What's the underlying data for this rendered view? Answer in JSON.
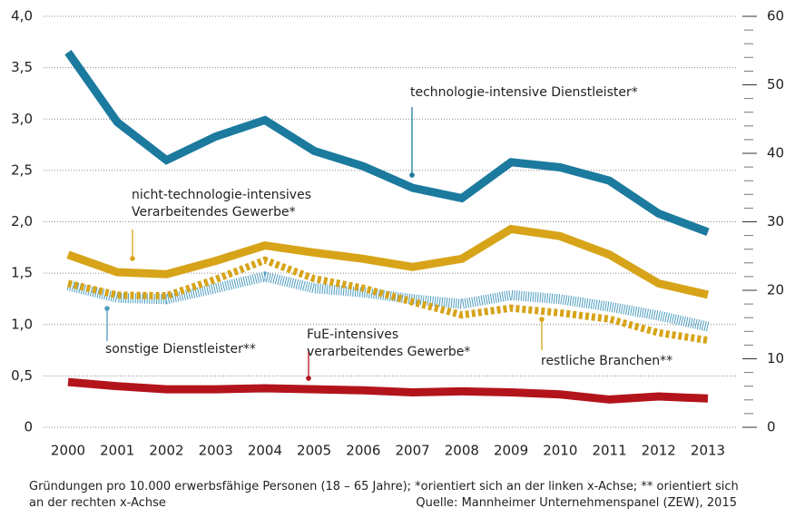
{
  "chart_data": {
    "type": "line",
    "x": [
      2000,
      2001,
      2002,
      2003,
      2004,
      2005,
      2006,
      2007,
      2008,
      2009,
      2010,
      2011,
      2012,
      2013
    ],
    "xlim": [
      2000,
      2013
    ],
    "xticks": [
      2000,
      2001,
      2002,
      2003,
      2004,
      2005,
      2006,
      2007,
      2008,
      2009,
      2010,
      2011,
      2012,
      2013
    ],
    "ylim": [
      0,
      4
    ],
    "yticks": [
      0,
      {
        "value": 0.5,
        "label": "0,5"
      },
      {
        "value": 1,
        "label": "1,0"
      },
      {
        "value": 1.5,
        "label": "1,5"
      },
      {
        "value": 2,
        "label": "2,0"
      },
      {
        "value": 2.5,
        "label": "2,5"
      },
      {
        "value": 3,
        "label": "3,0"
      },
      {
        "value": 3.5,
        "label": "3,5"
      },
      {
        "value": 4,
        "label": "4,0"
      }
    ],
    "y2lim": [
      0,
      60
    ],
    "y2ticks": [
      0,
      10,
      20,
      30,
      40,
      50,
      60
    ],
    "grid": true,
    "series": [
      {
        "name": "technologie-intensive Dienstleister*",
        "color": "#1b7a9e",
        "style": "solid",
        "values": [
          3.65,
          2.97,
          2.6,
          2.83,
          2.99,
          2.69,
          2.54,
          2.33,
          2.23,
          2.58,
          2.53,
          2.4,
          2.08,
          1.9
        ]
      },
      {
        "name": "nicht-technologie-intensives Verarbeitendes Gewerbe*",
        "color": "#d7a419",
        "style": "solid",
        "values": [
          1.68,
          1.51,
          1.49,
          1.62,
          1.77,
          1.7,
          1.64,
          1.56,
          1.64,
          1.93,
          1.86,
          1.68,
          1.4,
          1.29
        ]
      },
      {
        "name": "FuE-intensives verarbeitendes Gewerbe*",
        "color": "#b3141c",
        "style": "solid",
        "values": [
          0.44,
          0.4,
          0.37,
          0.37,
          0.38,
          0.37,
          0.36,
          0.34,
          0.35,
          0.34,
          0.32,
          0.27,
          0.3,
          0.28
        ]
      },
      {
        "name": "sonstige Dienstleister**",
        "color": "#4b9cbf",
        "style": "hatched",
        "axis": "y2",
        "values": [
          20.7,
          18.9,
          18.7,
          20.3,
          22,
          20.3,
          19.7,
          18.7,
          18,
          19.3,
          18.7,
          17.6,
          16.3,
          14.7
        ]
      },
      {
        "name": "restliche Branchen**",
        "color": "#d7a419",
        "style": "dashed",
        "axis": "y2",
        "values": [
          21,
          19.3,
          19.2,
          21.6,
          24.4,
          21.7,
          20.3,
          18.3,
          16.4,
          17.4,
          16.7,
          15.8,
          13.8,
          12.7
        ]
      }
    ],
    "note": "Gründungen pro 10.000 erwerbsfähige Personen (18 – 65 Jahre); *orientiert sich an der linken x-Achse; ** orientiert sich an der rechten x-Achse",
    "source": "Quelle: Mannheimer Unternehmenspanel (ZEW), 2015"
  }
}
